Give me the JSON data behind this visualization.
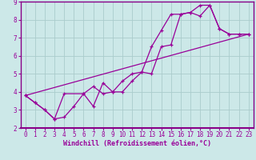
{
  "xlabel": "Windchill (Refroidissement éolien,°C)",
  "xlim": [
    -0.5,
    23.5
  ],
  "ylim": [
    2,
    9
  ],
  "xticks": [
    0,
    1,
    2,
    3,
    4,
    5,
    6,
    7,
    8,
    9,
    10,
    11,
    12,
    13,
    14,
    15,
    16,
    17,
    18,
    19,
    20,
    21,
    22,
    23
  ],
  "yticks": [
    2,
    3,
    4,
    5,
    6,
    7,
    8,
    9
  ],
  "bg_color": "#cce8e8",
  "line_color": "#990099",
  "grid_color": "#aacccc",
  "line1_x": [
    0,
    1,
    2,
    3,
    4,
    5,
    6,
    7,
    8,
    9,
    10,
    11,
    12,
    13,
    14,
    15,
    16,
    17,
    18,
    19,
    20,
    21,
    22,
    23
  ],
  "line1_y": [
    3.8,
    3.4,
    3.0,
    2.5,
    2.6,
    3.2,
    3.9,
    4.3,
    3.9,
    4.0,
    4.0,
    4.6,
    5.1,
    5.0,
    6.5,
    6.6,
    8.3,
    8.4,
    8.2,
    8.8,
    7.5,
    7.2,
    7.2,
    7.2
  ],
  "line2_x": [
    0,
    1,
    2,
    3,
    4,
    6,
    7,
    8,
    9,
    10,
    11,
    12,
    13,
    14,
    15,
    16,
    17,
    18,
    19,
    20,
    21,
    22,
    23
  ],
  "line2_y": [
    3.8,
    3.4,
    3.0,
    2.5,
    3.9,
    3.9,
    3.2,
    4.5,
    4.0,
    4.6,
    5.0,
    5.1,
    6.5,
    7.4,
    8.3,
    8.3,
    8.4,
    8.8,
    8.8,
    7.5,
    7.2,
    7.2,
    7.2
  ],
  "line3_x": [
    0,
    23
  ],
  "line3_y": [
    3.8,
    7.2
  ],
  "spine_color": "#880088",
  "xlabel_fontsize": 6.0,
  "tick_fontsize": 5.5
}
